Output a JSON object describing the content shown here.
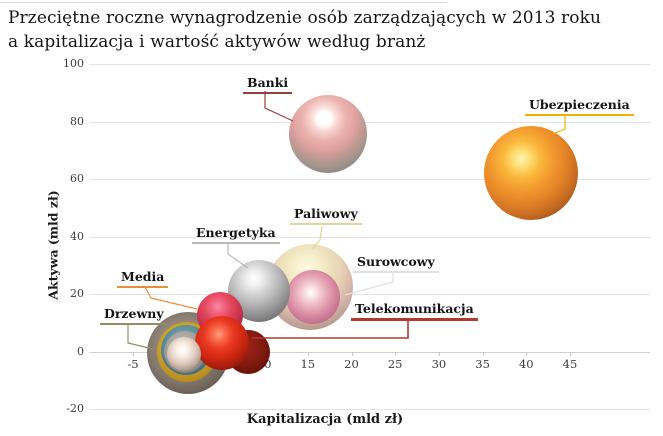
{
  "title": {
    "line1": "Przeciętne roczne wynagrodzenie osób zarządzających w 2013 roku",
    "line2": "a kapitalizacja i wartość aktywów według branż"
  },
  "chart_data": {
    "type": "scatter",
    "subtype": "bubble",
    "title": "Przeciętne roczne wynagrodzenie osób zarządzających w 2013 roku a kapitalizacja i wartość aktywów według branż",
    "xlabel": "Kapitalizacja (mld zł)",
    "ylabel": "Aktywa (mld zł)",
    "x_ticks": [
      -5,
      0,
      5,
      10,
      15,
      20,
      25,
      30,
      35,
      40,
      45
    ],
    "y_ticks": [
      100,
      80,
      60,
      40,
      20,
      0,
      -20
    ],
    "xlim": [
      -10,
      54
    ],
    "ylim": [
      -20,
      100
    ],
    "grid": true,
    "legend_position": "none",
    "series": [
      {
        "id": "paliwowy",
        "name": "Paliwowy",
        "x": 15.3,
        "y": 22.5,
        "bubble_radius_px": 43,
        "color": "#e8cf9f"
      },
      {
        "id": "surowcowy",
        "name": "Surowcowy",
        "x": 15.6,
        "y": 19,
        "bubble_radius_px": 27,
        "color": "#e0e0e0"
      },
      {
        "id": "energetyka",
        "name": "Energetyka",
        "x": 9.4,
        "y": 21,
        "bubble_radius_px": 31,
        "color": "#b8b8b8"
      },
      {
        "id": "drzewny",
        "name": "Drzewny",
        "x": 1.3,
        "y": -0.5,
        "bubble_radius_px": 41,
        "color": "#8f8f63"
      },
      {
        "id": "media",
        "name": "Media",
        "x": 4.9,
        "y": 12.7,
        "bubble_radius_px": 23,
        "color": "#e69138"
      },
      {
        "id": "telekomunikacja",
        "name": "Telekomunikacja",
        "x": 5.2,
        "y": 3,
        "bubble_radius_px": 27,
        "color": "#b03a2e"
      },
      {
        "id": "banki",
        "name": "Banki",
        "x": 17.3,
        "y": 75.5,
        "bubble_radius_px": 39,
        "color": "#9e3b3b"
      },
      {
        "id": "ubezpieczenia",
        "name": "Ubezpieczenia",
        "x": 40.5,
        "y": 62,
        "bubble_radius_px": 47,
        "color": "#f0b400"
      }
    ]
  }
}
